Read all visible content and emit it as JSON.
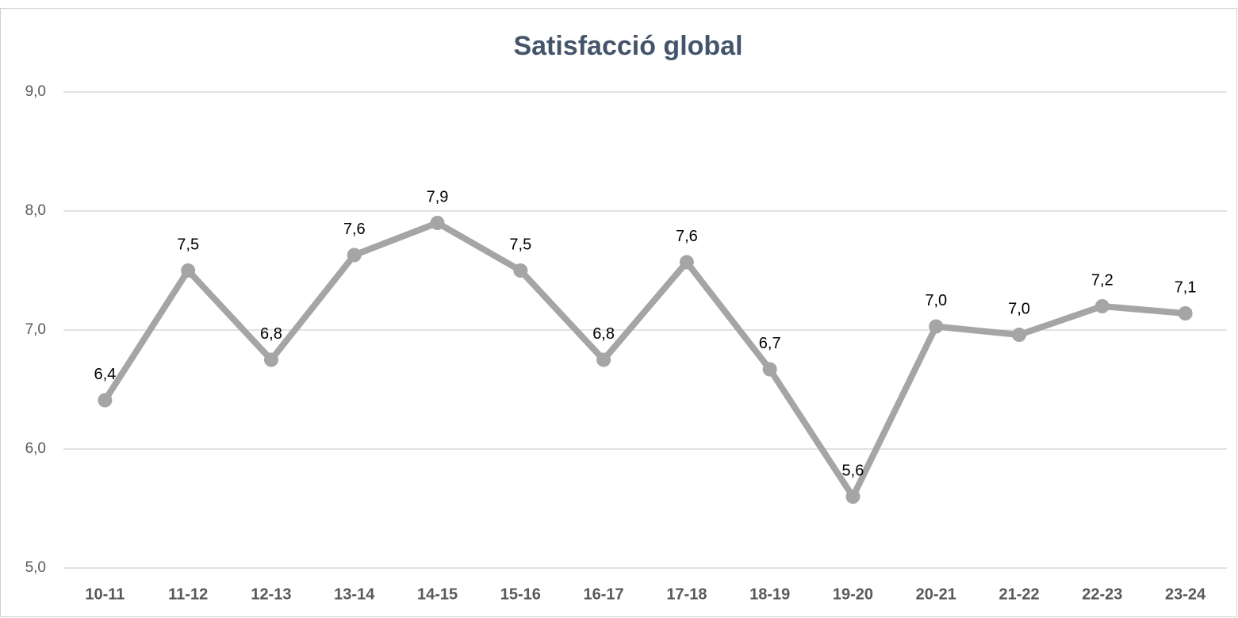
{
  "chart_data": {
    "type": "line",
    "title": "Satisfacció global",
    "categories": [
      "10-11",
      "11-12",
      "12-13",
      "13-14",
      "14-15",
      "15-16",
      "16-17",
      "17-18",
      "18-19",
      "19-20",
      "20-21",
      "21-22",
      "22-23",
      "23-24"
    ],
    "series": [
      {
        "name": "Satisfacció global",
        "color": "#a5a5a5",
        "values": [
          6.41,
          7.5,
          6.75,
          7.63,
          7.9,
          7.5,
          6.75,
          7.57,
          6.67,
          5.6,
          7.03,
          6.96,
          7.2,
          7.14
        ],
        "value_labels": [
          "6,4",
          "7,5",
          "6,8",
          "7,6",
          "7,9",
          "7,5",
          "6,8",
          "7,6",
          "6,7",
          "5,6",
          "7,0",
          "7,0",
          "7,2",
          "7,1"
        ]
      }
    ],
    "ylim": [
      5,
      9
    ],
    "yticks": [
      {
        "value": 5,
        "label": "5,0"
      },
      {
        "value": 6,
        "label": "6,0"
      },
      {
        "value": 7,
        "label": "7,0"
      },
      {
        "value": 8,
        "label": "8,0"
      },
      {
        "value": 9,
        "label": "9,0"
      }
    ],
    "grid": true
  }
}
